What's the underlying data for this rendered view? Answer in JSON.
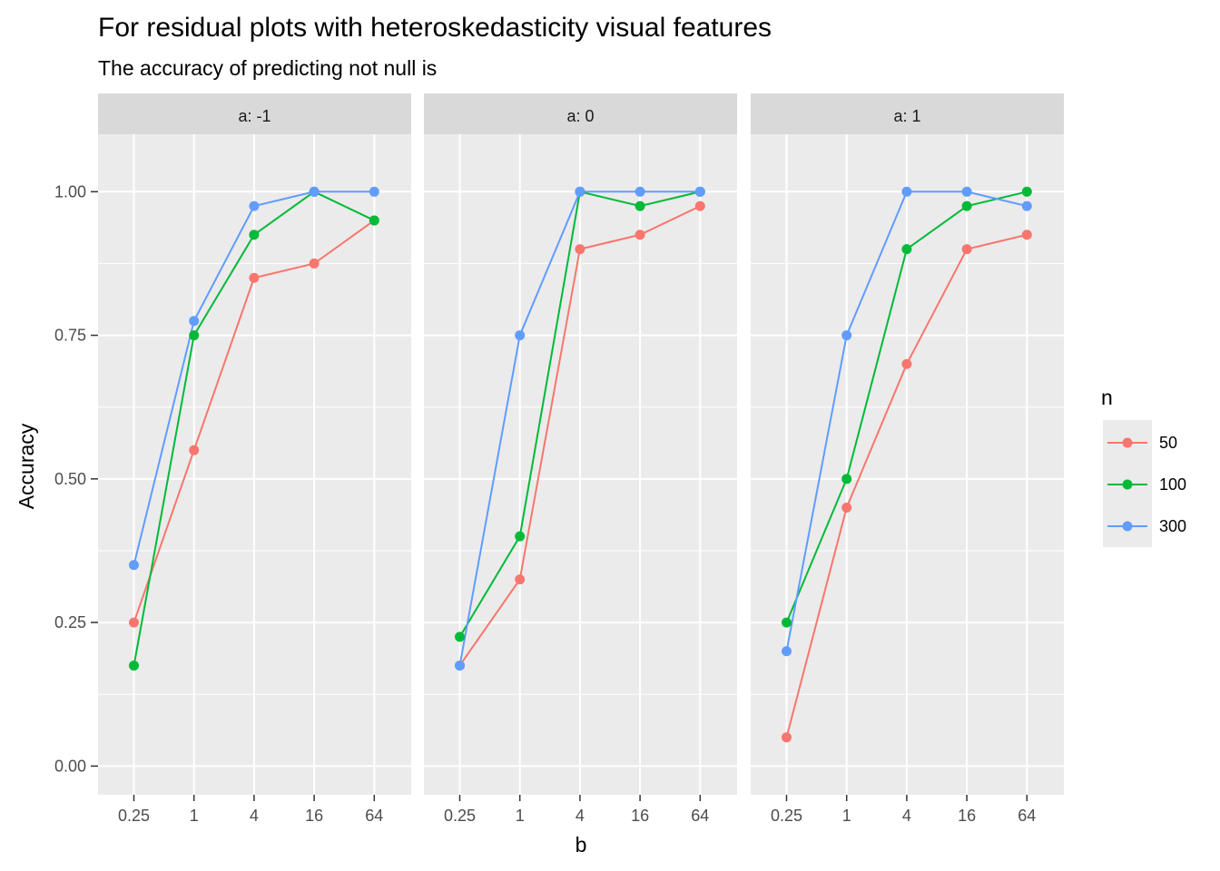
{
  "chart_data": {
    "type": "line",
    "title": "For residual plots with heteroskedasticity visual features",
    "subtitle": "The accuracy of predicting not null is",
    "xlabel": "b",
    "ylabel": "Accuracy",
    "x_categories": [
      "0.25",
      "1",
      "4",
      "16",
      "64"
    ],
    "y_ticks": [
      "0.00",
      "0.25",
      "0.50",
      "0.75",
      "1.00"
    ],
    "ylim": [
      -0.05,
      1.1
    ],
    "grid": true,
    "legend": {
      "title": "n",
      "position": "right",
      "entries": [
        "50",
        "100",
        "300"
      ]
    },
    "colors": {
      "50": "#F8766D",
      "100": "#00BA38",
      "300": "#619CFF"
    },
    "panels": [
      {
        "label": "a: -1",
        "series": [
          {
            "name": "50",
            "values": [
              0.25,
              0.55,
              0.85,
              0.875,
              0.95
            ]
          },
          {
            "name": "100",
            "values": [
              0.175,
              0.75,
              0.925,
              1.0,
              0.95
            ]
          },
          {
            "name": "300",
            "values": [
              0.35,
              0.775,
              0.975,
              1.0,
              1.0
            ]
          }
        ]
      },
      {
        "label": "a: 0",
        "series": [
          {
            "name": "50",
            "values": [
              0.175,
              0.325,
              0.9,
              0.925,
              0.975
            ]
          },
          {
            "name": "100",
            "values": [
              0.225,
              0.4,
              1.0,
              0.975,
              1.0
            ]
          },
          {
            "name": "300",
            "values": [
              0.175,
              0.75,
              1.0,
              1.0,
              1.0
            ]
          }
        ]
      },
      {
        "label": "a: 1",
        "series": [
          {
            "name": "50",
            "values": [
              0.05,
              0.45,
              0.7,
              0.9,
              0.925
            ]
          },
          {
            "name": "100",
            "values": [
              0.25,
              0.5,
              0.9,
              0.975,
              1.0
            ]
          },
          {
            "name": "300",
            "values": [
              0.2,
              0.75,
              1.0,
              1.0,
              0.975
            ]
          }
        ]
      }
    ]
  }
}
